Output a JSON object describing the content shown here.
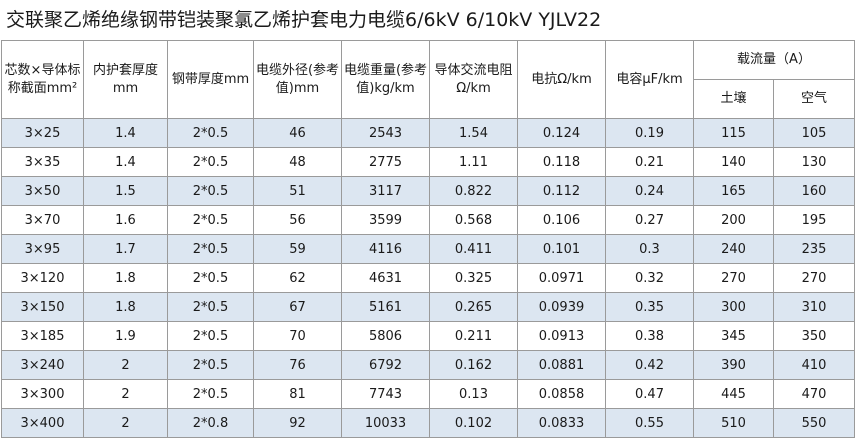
{
  "title": "交联聚乙烯绝缘钢带铠装聚氯乙烯护套电力电缆6/6kV  6/10kV  YJLV22",
  "headers": {
    "section": "芯数×导体标称截面mm²",
    "inner_sheath": "内护套厚度mm",
    "steel_tape": "钢带厚度mm",
    "outer_diameter": "电缆外径(参考值)mm",
    "weight": "电缆重量(参考值)kg/km",
    "ac_resistance": "导体交流电阻Ω/km",
    "reactance": "电抗Ω/km",
    "capacitance": "电容μF/km",
    "ampacity": "载流量（A）",
    "soil": "土壤",
    "air": "空气"
  },
  "rows": [
    [
      "3×25",
      "1.4",
      "2*0.5",
      "46",
      "2543",
      "1.54",
      "0.124",
      "0.19",
      "115",
      "105"
    ],
    [
      "3×35",
      "1.4",
      "2*0.5",
      "48",
      "2775",
      "1.11",
      "0.118",
      "0.21",
      "140",
      "130"
    ],
    [
      "3×50",
      "1.5",
      "2*0.5",
      "51",
      "3117",
      "0.822",
      "0.112",
      "0.24",
      "165",
      "160"
    ],
    [
      "3×70",
      "1.6",
      "2*0.5",
      "56",
      "3599",
      "0.568",
      "0.106",
      "0.27",
      "200",
      "195"
    ],
    [
      "3×95",
      "1.7",
      "2*0.5",
      "59",
      "4116",
      "0.411",
      "0.101",
      "0.3",
      "240",
      "235"
    ],
    [
      "3×120",
      "1.8",
      "2*0.5",
      "62",
      "4631",
      "0.325",
      "0.0971",
      "0.32",
      "270",
      "270"
    ],
    [
      "3×150",
      "1.8",
      "2*0.5",
      "67",
      "5161",
      "0.265",
      "0.0939",
      "0.35",
      "300",
      "310"
    ],
    [
      "3×185",
      "1.9",
      "2*0.5",
      "70",
      "5806",
      "0.211",
      "0.0913",
      "0.38",
      "345",
      "350"
    ],
    [
      "3×240",
      "2",
      "2*0.5",
      "76",
      "6792",
      "0.162",
      "0.0881",
      "0.42",
      "390",
      "410"
    ],
    [
      "3×300",
      "2",
      "2*0.5",
      "81",
      "7743",
      "0.13",
      "0.0858",
      "0.47",
      "445",
      "470"
    ],
    [
      "3×400",
      "2",
      "2*0.8",
      "92",
      "10033",
      "0.102",
      "0.0833",
      "0.55",
      "510",
      "550"
    ]
  ]
}
